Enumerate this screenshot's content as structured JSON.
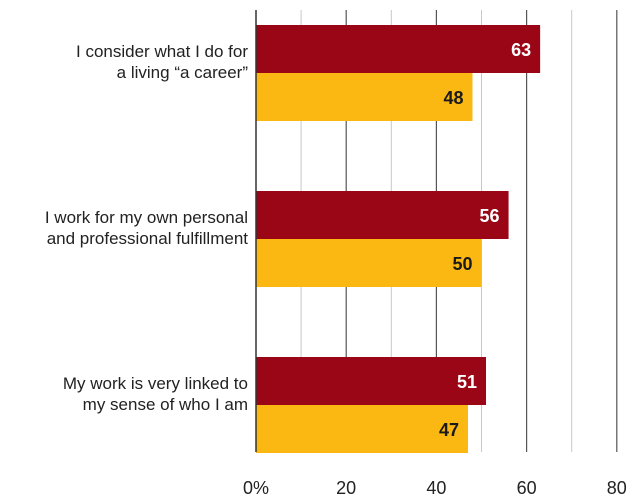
{
  "chart_data": {
    "type": "bar",
    "orientation": "horizontal",
    "categories": [
      "I consider what I do for a living “a career”",
      "I work for my own personal and professional fulfillment",
      "My work is very linked to my sense of who I am"
    ],
    "category_lines": [
      [
        "I consider what I do for",
        "a living “a career”"
      ],
      [
        "I work for my own personal",
        "and professional fulfillment"
      ],
      [
        "My work is very linked to",
        "my sense of who I am"
      ]
    ],
    "series": [
      {
        "values": [
          63,
          56,
          51
        ],
        "color": "#9b0617"
      },
      {
        "values": [
          48,
          50,
          47
        ],
        "color": "#fbb813"
      }
    ],
    "xlim": [
      0,
      80
    ],
    "x_ticks": [
      "0%",
      "20",
      "40",
      "60",
      "80"
    ],
    "x_tick_values": [
      0,
      20,
      40,
      60,
      80
    ],
    "grid": true,
    "grid_step": 10,
    "title": "",
    "xlabel": "",
    "ylabel": "",
    "legend": "none"
  }
}
